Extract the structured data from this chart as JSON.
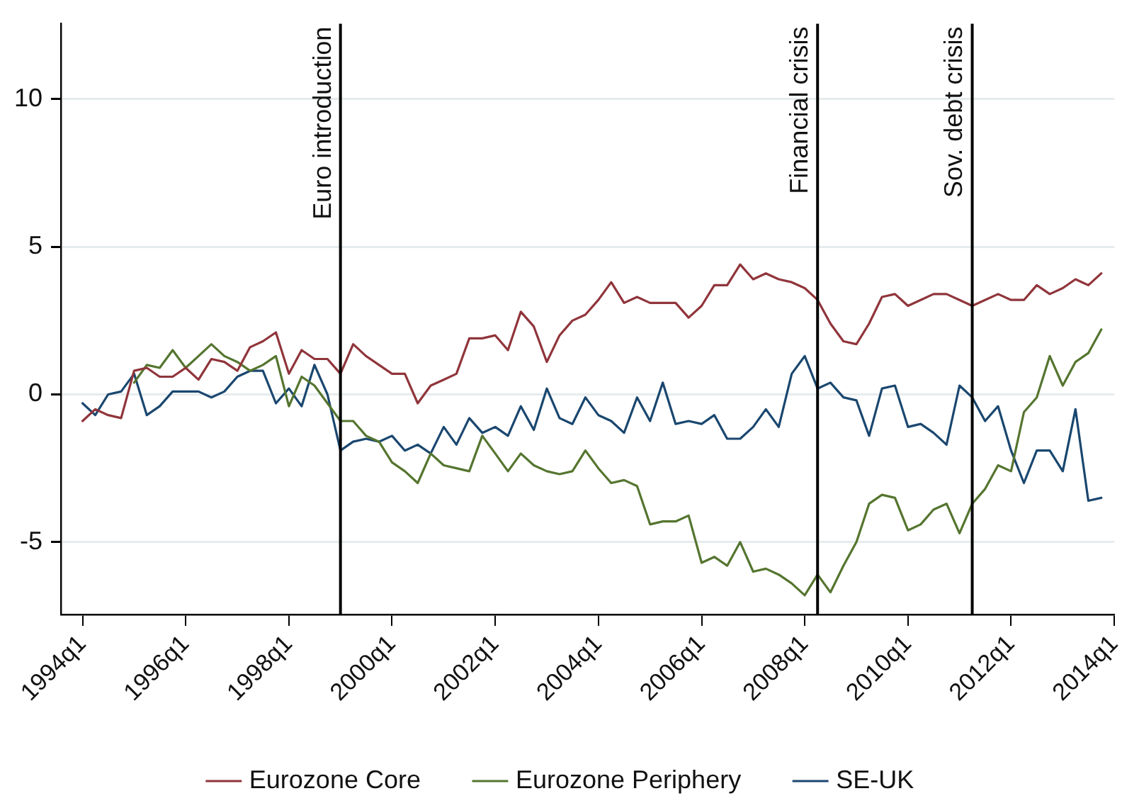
{
  "chart_data": {
    "type": "line",
    "x": [
      "1994-01",
      "1994-04",
      "1994-07",
      "1994-10",
      "1995-01",
      "1995-04",
      "1995-07",
      "1995-10",
      "1996-01",
      "1996-04",
      "1996-07",
      "1996-10",
      "1997-01",
      "1997-04",
      "1997-07",
      "1997-10",
      "1998-01",
      "1998-04",
      "1998-07",
      "1998-10",
      "1999-01",
      "1999-04",
      "1999-07",
      "1999-10",
      "2000-01",
      "2000-04",
      "2000-07",
      "2000-10",
      "2001-01",
      "2001-04",
      "2001-07",
      "2001-10",
      "2002-01",
      "2002-04",
      "2002-07",
      "2002-10",
      "2003-01",
      "2003-04",
      "2003-07",
      "2003-10",
      "2004-01",
      "2004-04",
      "2004-07",
      "2004-10",
      "2005-01",
      "2005-04",
      "2005-07",
      "2005-10",
      "2006-01",
      "2006-04",
      "2006-07",
      "2006-10",
      "2007-01",
      "2007-04",
      "2007-07",
      "2007-10",
      "2008-01",
      "2008-04",
      "2008-07",
      "2008-10",
      "2009-01",
      "2009-04",
      "2009-07",
      "2009-10",
      "2010-01",
      "2010-04",
      "2010-07",
      "2010-10",
      "2011-01",
      "2011-04",
      "2011-07",
      "2011-10",
      "2012-01",
      "2012-04",
      "2012-07",
      "2012-10",
      "2013-01",
      "2013-04",
      "2013-07",
      "2013-10"
    ],
    "series": [
      {
        "name": "Eurozone Core",
        "color": "#90353b",
        "values": [
          -0.9,
          -0.5,
          -0.7,
          -0.8,
          0.8,
          0.9,
          0.6,
          0.6,
          0.9,
          0.5,
          1.2,
          1.1,
          0.8,
          1.6,
          1.8,
          2.1,
          0.7,
          1.5,
          1.2,
          1.2,
          0.7,
          1.7,
          1.3,
          1.0,
          0.7,
          0.7,
          -0.3,
          0.3,
          0.5,
          0.7,
          1.9,
          1.9,
          2.0,
          1.5,
          2.8,
          2.3,
          1.1,
          2.0,
          2.5,
          2.7,
          3.2,
          3.8,
          3.1,
          3.3,
          3.1,
          3.1,
          3.1,
          2.6,
          3.0,
          3.7,
          3.7,
          4.4,
          3.9,
          4.1,
          3.9,
          3.8,
          3.6,
          3.2,
          2.4,
          1.8,
          1.7,
          2.4,
          3.3,
          3.4,
          3.0,
          3.2,
          3.4,
          3.4,
          3.2,
          3.0,
          3.2,
          3.4,
          3.2,
          3.2,
          3.7,
          3.4,
          3.6,
          3.9,
          3.7,
          4.1
        ]
      },
      {
        "name": "Eurozone Periphery",
        "color": "#55752f",
        "values": [
          null,
          null,
          null,
          null,
          0.4,
          1.0,
          0.9,
          1.5,
          0.9,
          1.3,
          1.7,
          1.3,
          1.1,
          0.8,
          1.0,
          1.3,
          -0.4,
          0.6,
          0.3,
          -0.3,
          -0.9,
          -0.9,
          -1.4,
          -1.6,
          -2.3,
          -2.6,
          -3.0,
          -2.0,
          -2.4,
          -2.5,
          -2.6,
          -1.4,
          -2.0,
          -2.6,
          -2.0,
          -2.4,
          -2.6,
          -2.7,
          -2.6,
          -1.9,
          -2.5,
          -3.0,
          -2.9,
          -3.1,
          -4.4,
          -4.3,
          -4.3,
          -4.1,
          -5.7,
          -5.5,
          -5.8,
          -5.0,
          -6.0,
          -5.9,
          -6.1,
          -6.4,
          -6.8,
          -6.1,
          -6.7,
          -5.8,
          -5.0,
          -3.7,
          -3.4,
          -3.5,
          -4.6,
          -4.4,
          -3.9,
          -3.7,
          -4.7,
          -3.7,
          -3.2,
          -2.4,
          -2.6,
          -0.6,
          -0.1,
          1.3,
          0.3,
          1.1,
          1.4,
          2.2
        ]
      },
      {
        "name": "SE-UK",
        "color": "#1a476f",
        "values": [
          -0.3,
          -0.7,
          0.0,
          0.1,
          0.7,
          -0.7,
          -0.4,
          0.1,
          0.1,
          0.1,
          -0.1,
          0.1,
          0.6,
          0.8,
          0.8,
          -0.3,
          0.2,
          -0.4,
          1.0,
          0.0,
          -1.9,
          -1.6,
          -1.5,
          -1.6,
          -1.4,
          -1.9,
          -1.7,
          -2.0,
          -1.1,
          -1.7,
          -0.8,
          -1.3,
          -1.1,
          -1.4,
          -0.4,
          -1.2,
          0.2,
          -0.8,
          -1.0,
          -0.1,
          -0.7,
          -0.9,
          -1.3,
          -0.1,
          -0.9,
          0.4,
          -1.0,
          -0.9,
          -1.0,
          -0.7,
          -1.5,
          -1.5,
          -1.1,
          -0.5,
          -1.1,
          0.7,
          1.3,
          0.2,
          0.4,
          -0.1,
          -0.2,
          -1.4,
          0.2,
          0.3,
          -1.1,
          -1.0,
          -1.3,
          -1.7,
          0.3,
          -0.1,
          -0.9,
          -0.4,
          -1.9,
          -3.0,
          -1.9,
          -1.9,
          -2.6,
          -0.5,
          -3.6,
          -3.5
        ]
      }
    ],
    "xlim": [
      "1993-08",
      "2014-01"
    ],
    "xticks": [
      {
        "value": "1994-01",
        "label": "1994q1"
      },
      {
        "value": "1996-01",
        "label": "1996q1"
      },
      {
        "value": "1998-01",
        "label": "1998q1"
      },
      {
        "value": "2000-01",
        "label": "2000q1"
      },
      {
        "value": "2002-01",
        "label": "2002q1"
      },
      {
        "value": "2004-01",
        "label": "2004q1"
      },
      {
        "value": "2006-01",
        "label": "2006q1"
      },
      {
        "value": "2008-01",
        "label": "2008q1"
      },
      {
        "value": "2010-01",
        "label": "2010q1"
      },
      {
        "value": "2012-01",
        "label": "2012q1"
      },
      {
        "value": "2014-01",
        "label": "2014q1"
      }
    ],
    "ylim": [
      -7.45,
      12.55
    ],
    "yticks": [
      -5,
      0,
      5,
      10
    ],
    "ref_lines": [
      {
        "axis": "x",
        "value": "1999-01",
        "label": "Euro introduction",
        "color": "#000000"
      },
      {
        "axis": "x",
        "value": "2008-04",
        "label": "Financial crisis",
        "color": "#000000"
      },
      {
        "axis": "x",
        "value": "2011-04",
        "label": "Sov. debt crisis",
        "color": "#000000"
      }
    ],
    "grid": "y",
    "legend": "bottom",
    "marker": "none",
    "line_style": "solid"
  }
}
